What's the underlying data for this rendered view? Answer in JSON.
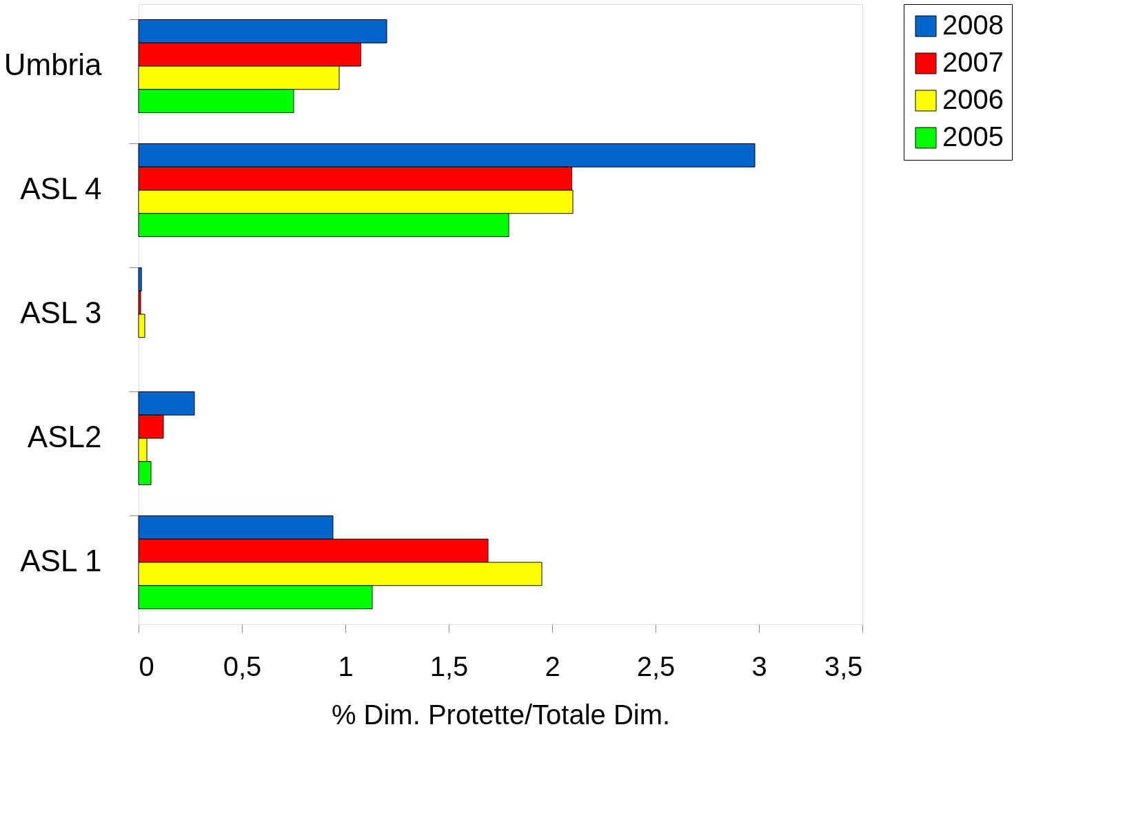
{
  "chart_data": {
    "type": "bar",
    "orientation": "horizontal",
    "categories": [
      "Umbria",
      "ASL 4",
      "ASL 3",
      "ASL2",
      "ASL 1"
    ],
    "series": [
      {
        "name": "2008",
        "color": "#0066cc",
        "values": [
          1.2,
          2.98,
          0.014,
          0.27,
          0.94
        ]
      },
      {
        "name": "2007",
        "color": "#ff0000",
        "values": [
          1.075,
          2.095,
          0.01,
          0.12,
          1.69
        ]
      },
      {
        "name": "2006",
        "color": "#ffff00",
        "values": [
          0.97,
          2.1,
          0.03,
          0.04,
          1.95
        ]
      },
      {
        "name": "2005",
        "color": "#00ff00",
        "values": [
          0.75,
          1.79,
          null,
          0.06,
          1.13
        ]
      }
    ],
    "xlabel": "% Dim. Protette/Totale Dim.",
    "xlim": [
      0,
      3.5
    ],
    "xticks": [
      0,
      {
        "value": 0.5,
        "label": "0,5"
      },
      1,
      {
        "value": 1.5,
        "label": "1,5"
      },
      2,
      {
        "value": 2.5,
        "label": "2,5"
      },
      3,
      {
        "value": 3.5,
        "label": "3,5"
      }
    ],
    "grid": false,
    "legend": "right"
  }
}
